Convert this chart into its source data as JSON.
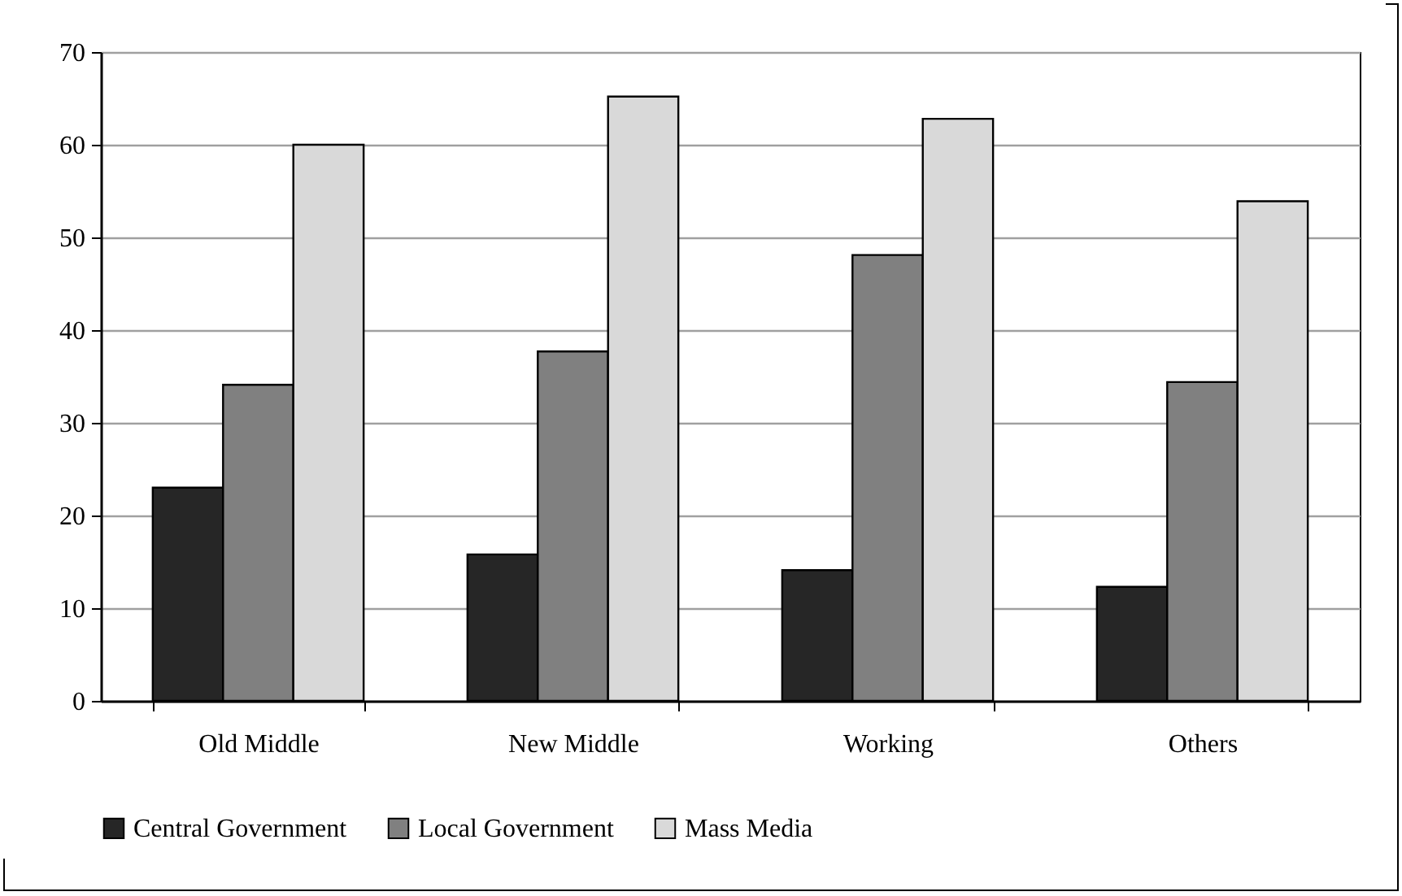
{
  "chart_data": {
    "type": "bar",
    "categories": [
      "Old Middle",
      "New Middle",
      "Working",
      "Others"
    ],
    "series": [
      {
        "name": "Central Government",
        "color": "#262626",
        "values": [
          23.0,
          15.8,
          14.1,
          12.3
        ]
      },
      {
        "name": "Local Government",
        "color": "#808080",
        "values": [
          34.1,
          37.7,
          48.1,
          34.4
        ]
      },
      {
        "name": "Mass Media",
        "color": "#d9d9d9",
        "values": [
          60.0,
          65.2,
          62.8,
          53.9
        ]
      }
    ],
    "ylim": [
      0,
      70
    ],
    "yticks": [
      0,
      10,
      20,
      30,
      40,
      50,
      60,
      70
    ],
    "grid": "y",
    "legend": "bottom"
  }
}
